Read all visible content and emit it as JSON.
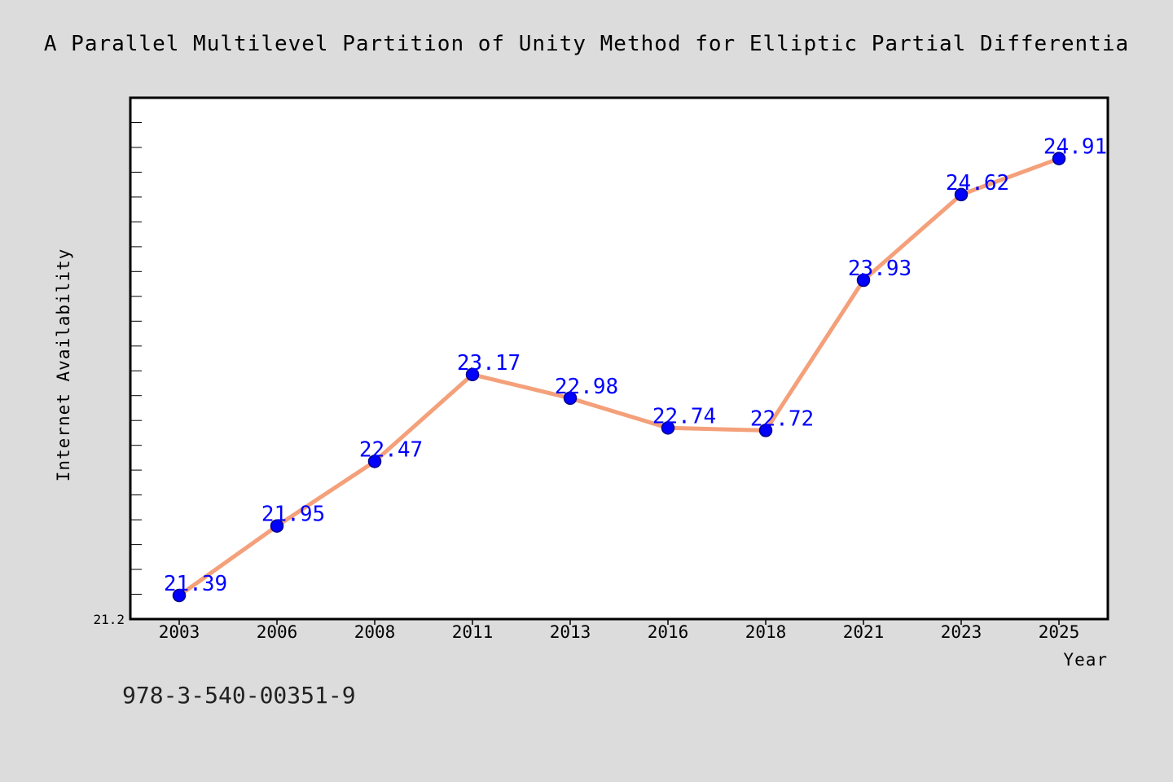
{
  "colors": {
    "background": "#dcdcdc",
    "plot_background": "#ffffff",
    "line": "#f4a07a",
    "marker": "#0000ff",
    "data_label": "#0000ff"
  },
  "footer": {
    "isbn": "978-3-540-00351-9"
  },
  "chart_data": {
    "type": "line",
    "title": "A Parallel Multilevel Partition of Unity Method for Elliptic Partial Differentia",
    "xlabel": "Year",
    "ylabel": "Internet Availability",
    "categories": [
      "2003",
      "2006",
      "2008",
      "2011",
      "2013",
      "2016",
      "2018",
      "2021",
      "2023",
      "2025"
    ],
    "series": [
      {
        "values": [
          21.39,
          21.95,
          22.47,
          23.17,
          22.98,
          22.74,
          22.72,
          23.93,
          24.62,
          24.91
        ]
      }
    ],
    "data_labels": [
      "21.39",
      "21.95",
      "22.47",
      "23.17",
      "22.98",
      "22.74",
      "22.72",
      "23.93",
      "24.62",
      "24.91"
    ],
    "ylim": [
      21.2,
      25.4
    ],
    "y_tick_labels": [
      "21.2"
    ],
    "grid": false,
    "legend": "none"
  }
}
